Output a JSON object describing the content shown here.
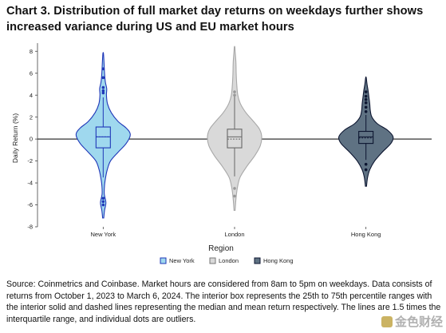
{
  "title": "Chart 3. Distribution of full market day returns on weekdays further shows increased variance during US and EU market hours",
  "source_note": "Source: Coinmetrics and Coinbase. Market hours are considered from 8am to 5pm on weekdays. Data consists of returns from October 1, 2023 to March 6, 2024. The interior box represents the 25th to 75th percentile ranges with the interior solid and dashed lines representing the median and mean return respectively. The lines are 1.5 times the interquartile range, and individual dots are outliers.",
  "watermark": "金色财经",
  "chart_data": {
    "type": "violin",
    "xlabel": "Region",
    "ylabel": "Daily Return (%)",
    "ylim": [
      -8,
      8.6
    ],
    "yticks": [
      -8,
      -6,
      -4,
      -2,
      0,
      2,
      4,
      6,
      8
    ],
    "grid": false,
    "zero_line": true,
    "legend_position": "bottom",
    "categories": [
      "New York",
      "London",
      "Hong Kong"
    ],
    "series": [
      {
        "name": "New York",
        "fill": "#9fd8ee",
        "edge": "#1f37b8",
        "min": -7.2,
        "max": 7.8,
        "q1": -0.8,
        "median": 0.2,
        "mean": 0.2,
        "q3": 1.1,
        "whisker_low": -3.5,
        "whisker_high": 3.8,
        "outliers": [
          4.2,
          4.4,
          4.7,
          -5.4,
          -5.7,
          -6.0,
          5.6,
          6.4
        ],
        "density": [
          [
            -7.2,
            0.02
          ],
          [
            -6.5,
            0.05
          ],
          [
            -5.8,
            0.1
          ],
          [
            -5.0,
            0.04
          ],
          [
            -4.2,
            0.05
          ],
          [
            -3.5,
            0.09
          ],
          [
            -2.8,
            0.15
          ],
          [
            -2.0,
            0.27
          ],
          [
            -1.2,
            0.55
          ],
          [
            -0.4,
            0.85
          ],
          [
            0.4,
            1.0
          ],
          [
            1.0,
            0.85
          ],
          [
            1.6,
            0.55
          ],
          [
            2.4,
            0.3
          ],
          [
            3.2,
            0.16
          ],
          [
            4.0,
            0.12
          ],
          [
            4.6,
            0.13
          ],
          [
            5.2,
            0.08
          ],
          [
            6.0,
            0.05
          ],
          [
            7.0,
            0.03
          ],
          [
            7.8,
            0.01
          ]
        ]
      },
      {
        "name": "London",
        "fill": "#d9d9d9",
        "edge": "#a8a8a8",
        "min": -6.5,
        "max": 8.4,
        "q1": -0.8,
        "median": 0.2,
        "mean": 0.0,
        "q3": 0.9,
        "whisker_low": -3.4,
        "whisker_high": 3.9,
        "outliers": [
          4.0,
          4.3,
          -4.5,
          -5.2
        ],
        "density": [
          [
            -6.5,
            0.02
          ],
          [
            -5.5,
            0.05
          ],
          [
            -4.5,
            0.1
          ],
          [
            -3.5,
            0.2
          ],
          [
            -2.5,
            0.45
          ],
          [
            -1.5,
            0.75
          ],
          [
            -0.6,
            0.95
          ],
          [
            0.2,
            1.0
          ],
          [
            0.9,
            0.92
          ],
          [
            1.6,
            0.7
          ],
          [
            2.4,
            0.42
          ],
          [
            3.2,
            0.22
          ],
          [
            4.0,
            0.12
          ],
          [
            5.0,
            0.08
          ],
          [
            6.0,
            0.06
          ],
          [
            7.0,
            0.05
          ],
          [
            8.0,
            0.02
          ],
          [
            8.4,
            0.01
          ]
        ]
      },
      {
        "name": "Hong Kong",
        "fill": "#5f7283",
        "edge": "#0c1530",
        "min": -4.3,
        "max": 5.6,
        "q1": -0.4,
        "median": 0.2,
        "mean": 0.1,
        "q3": 0.7,
        "whisker_low": -1.9,
        "whisker_high": 2.2,
        "outliers": [
          2.5,
          2.9,
          3.3,
          3.6,
          3.9,
          4.3,
          -2.3,
          -2.8
        ],
        "density": [
          [
            -4.3,
            0.02
          ],
          [
            -3.5,
            0.06
          ],
          [
            -2.8,
            0.14
          ],
          [
            -2.0,
            0.32
          ],
          [
            -1.2,
            0.6
          ],
          [
            -0.4,
            0.92
          ],
          [
            0.2,
            1.0
          ],
          [
            0.8,
            0.8
          ],
          [
            1.4,
            0.42
          ],
          [
            2.0,
            0.22
          ],
          [
            2.6,
            0.16
          ],
          [
            3.2,
            0.14
          ],
          [
            3.8,
            0.11
          ],
          [
            4.4,
            0.08
          ],
          [
            5.0,
            0.04
          ],
          [
            5.6,
            0.01
          ]
        ]
      }
    ],
    "legend": [
      "New York",
      "London",
      "Hong Kong"
    ]
  }
}
